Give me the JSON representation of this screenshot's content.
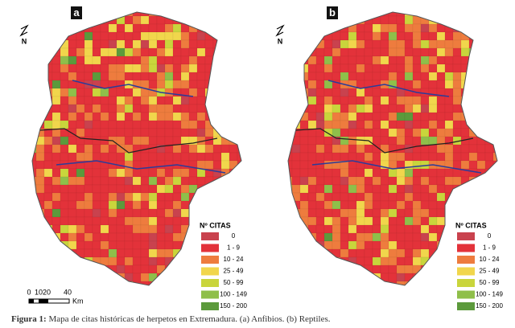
{
  "panels": [
    {
      "label": "a",
      "legend": {
        "title": "Nº CITAS",
        "items": [
          "0",
          "1 - 9",
          "10 - 24",
          "25 - 49",
          "50 - 99",
          "100 - 149",
          "150 - 200"
        ]
      }
    },
    {
      "label": "b",
      "legend": {
        "title": "Nº CITAS",
        "items": [
          "0",
          "1 - 9",
          "10 - 24",
          "25 - 49",
          "50 - 99",
          "100 - 149",
          "150 - 200"
        ]
      }
    }
  ],
  "north": "N",
  "scale": {
    "labels": [
      "0",
      "10",
      "20",
      "40"
    ],
    "unit": "Km"
  },
  "caption": {
    "label": "Figura 1:",
    "text": "Mapa de citas históricas de herpetos en Extremadura. (a) Anfibios. (b) Reptiles."
  }
}
